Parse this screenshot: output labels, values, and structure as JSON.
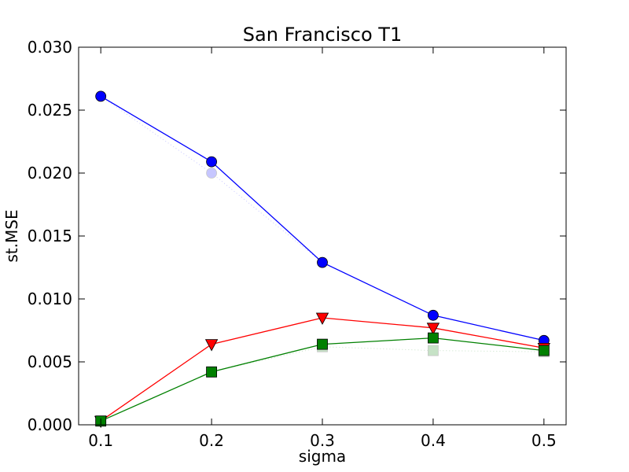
{
  "chart_data": {
    "type": "line",
    "title": "San Francisco T1",
    "xlabel": "sigma",
    "ylabel": "st.MSE",
    "xlim": [
      0.08,
      0.52
    ],
    "ylim": [
      0.0,
      0.03
    ],
    "xticks": [
      "0.1",
      "0.2",
      "0.3",
      "0.4",
      "0.5"
    ],
    "yticks": [
      "0.000",
      "0.005",
      "0.010",
      "0.015",
      "0.020",
      "0.025",
      "0.030"
    ],
    "x": [
      0.1,
      0.2,
      0.3,
      0.4,
      0.5
    ],
    "grid": false,
    "series": [
      {
        "values": [
          0.0261,
          0.0209,
          0.0129,
          0.0087,
          0.0067
        ],
        "color": "#0000ff",
        "marker": "circle",
        "style": "solid"
      },
      {
        "values": [
          0.0003,
          0.0064,
          0.0085,
          0.0077,
          0.0061
        ],
        "color": "#ff0000",
        "marker": "triangle-down",
        "style": "solid"
      },
      {
        "values": [
          0.0003,
          0.0042,
          0.0064,
          0.0069,
          0.0059
        ],
        "color": "#008000",
        "marker": "square",
        "style": "solid"
      },
      {
        "values": [
          0.0261,
          0.02,
          0.0129,
          0.0087,
          0.0067
        ],
        "color": "#0000ff",
        "marker": "circle",
        "style": "dotted",
        "faded": true
      },
      {
        "values": [
          0.0003,
          0.0064,
          0.0085,
          0.0077,
          0.0061
        ],
        "color": "#ff0000",
        "marker": "triangle-down",
        "style": "dotted",
        "faded": true
      },
      {
        "values": [
          0.0003,
          0.0042,
          0.0062,
          0.0059,
          0.0058
        ],
        "color": "#008000",
        "marker": "square",
        "style": "dotted",
        "faded": true
      }
    ]
  }
}
